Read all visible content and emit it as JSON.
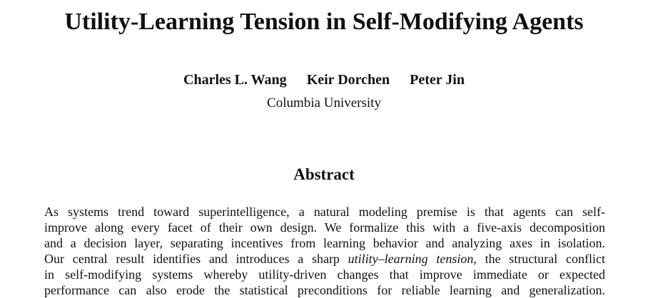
{
  "title": "Utility-Learning Tension in Self-Modifying Agents",
  "authors": [
    "Charles L. Wang",
    "Keir Dorchen",
    "Peter Jin"
  ],
  "affiliation": "Columbia University",
  "abstract": {
    "heading": "Abstract",
    "lines": [
      [
        {
          "text": "As systems trend toward superintelligence, a natural modeling premise is that agents can self-"
        }
      ],
      [
        {
          "text": "improve along every facet of their own design. We formalize this with a five-axis decomposition"
        }
      ],
      [
        {
          "text": "and a decision layer, separating incentives from learning behavior and analyzing axes in isolation."
        }
      ],
      [
        {
          "text": "Our central result identifies and introduces a sharp "
        },
        {
          "text": "utility–learning tension",
          "italic": true
        },
        {
          "text": ", the structural conflict"
        }
      ],
      [
        {
          "text": "in self-modifying systems whereby utility-driven changes that improve immediate or expected"
        }
      ],
      [
        {
          "text": "performance can also erode the statistical preconditions for reliable learning and generalization."
        }
      ]
    ]
  }
}
